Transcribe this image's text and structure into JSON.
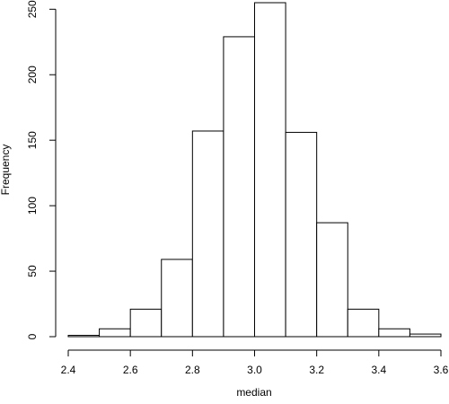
{
  "chart_data": {
    "type": "histogram",
    "xlabel": "median",
    "ylabel": "Frequency",
    "bins": [
      2.4,
      2.5,
      2.6,
      2.7,
      2.8,
      2.9,
      3.0,
      3.1,
      3.2,
      3.3,
      3.4,
      3.5,
      3.6
    ],
    "values": [
      1,
      6,
      21,
      59,
      157,
      229,
      255,
      156,
      87,
      21,
      6,
      2
    ],
    "color": "#ffffff",
    "edgecolor": "#000000",
    "xlim": [
      2.4,
      3.6
    ],
    "ylim": [
      0,
      255
    ],
    "xticks": [
      2.4,
      2.6,
      2.8,
      {
        "value": 3,
        "label": "3.0"
      },
      3.2,
      3.4,
      3.6
    ],
    "yticks": [
      0,
      50,
      100,
      150,
      200,
      250
    ],
    "grid": false
  }
}
